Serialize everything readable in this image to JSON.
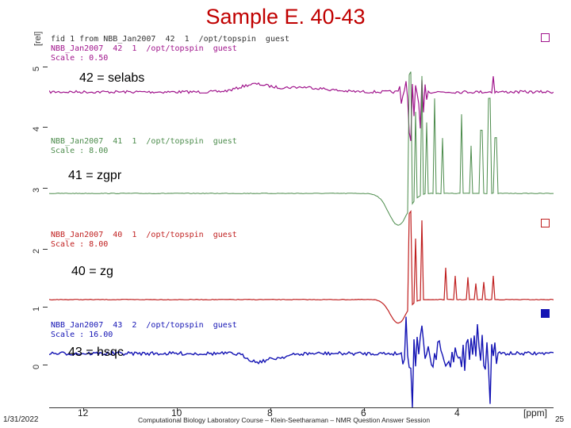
{
  "slide_title": "Sample E. 40-43",
  "y_axis": {
    "unit": "[rel]",
    "ticks": [
      "0",
      "1",
      "2",
      "3",
      "4",
      "5"
    ]
  },
  "x_axis": {
    "unit": "[ppm]",
    "ticks": [
      "12",
      "10",
      "8",
      "6",
      "4"
    ]
  },
  "spectra": [
    {
      "label": "42 = selabs",
      "color": "#a0148c",
      "header_lines": [
        "fid 1 from NBB_Jan2007  42  1  /opt/topspin  guest",
        "NBB_Jan2007  42  1  /opt/topspin  guest",
        "Scale : 0.50"
      ]
    },
    {
      "label": "41 = zgpr",
      "color": "#4c8c4c",
      "header_lines": [
        "NBB_Jan2007  41  1  /opt/topspin  guest",
        "Scale : 8.00"
      ]
    },
    {
      "label": "40 = zg",
      "color": "#c02020",
      "header_lines": [
        "NBB_Jan2007  40  1  /opt/topspin  guest",
        "Scale : 8.00"
      ]
    },
    {
      "label": "43 = hsqc",
      "color": "#1414b4",
      "header_lines": [
        "NBB_Jan2007  43  2  /opt/topspin  guest",
        "Scale : 16.00"
      ]
    }
  ],
  "footer": {
    "date": "1/31/2022",
    "course": "Computational Biology Laboratory Course – Klein-Seetharaman – NMR Question Answer Session",
    "page": "25"
  }
}
